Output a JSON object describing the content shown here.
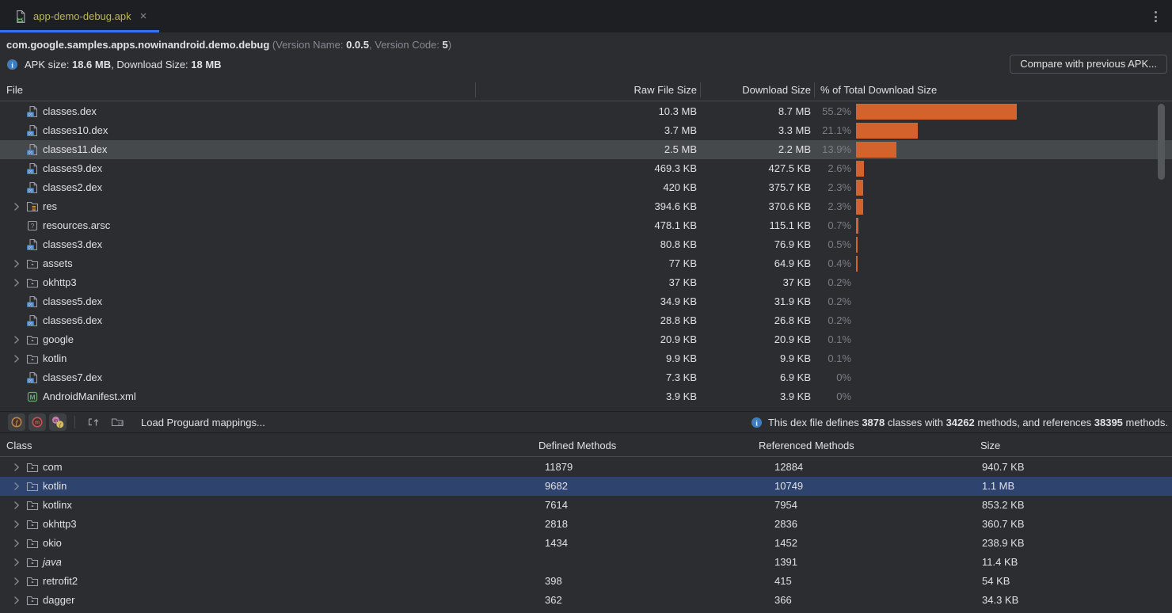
{
  "tab": {
    "title": "app-demo-debug.apk",
    "close": "×"
  },
  "header": {
    "package_name": "com.google.samples.apps.nowinandroid.demo.debug",
    "version_prefix": " (Version Name: ",
    "version_name": "0.0.5",
    "version_mid": ", Version Code: ",
    "version_code": "5",
    "version_suffix": ")",
    "apk_size_label": "APK size: ",
    "apk_size_value": "18.6 MB",
    "download_label": ", Download Size: ",
    "download_value": "18 MB",
    "compare_button": "Compare with previous APK..."
  },
  "colors": {
    "accent_blue": "#3574F0",
    "bar_orange": "#D4622D",
    "selection_blue": "#2E436E",
    "selection_gray": "#46494B"
  },
  "file_table": {
    "columns": [
      "File",
      "Raw File Size",
      "Download Size",
      "% of Total Download Size"
    ],
    "rows": [
      {
        "label": "classes.dex",
        "icon": "dex-file-icon",
        "folder": false,
        "raw": "10.3 MB",
        "download": "8.7 MB",
        "pct": "55.2%",
        "pct_value": 55.2,
        "selected": false
      },
      {
        "label": "classes10.dex",
        "icon": "dex-file-icon",
        "folder": false,
        "raw": "3.7 MB",
        "download": "3.3 MB",
        "pct": "21.1%",
        "pct_value": 21.1,
        "selected": false
      },
      {
        "label": "classes11.dex",
        "icon": "dex-file-icon",
        "folder": false,
        "raw": "2.5 MB",
        "download": "2.2 MB",
        "pct": "13.9%",
        "pct_value": 13.9,
        "selected": true
      },
      {
        "label": "classes9.dex",
        "icon": "dex-file-icon",
        "folder": false,
        "raw": "469.3 KB",
        "download": "427.5 KB",
        "pct": "2.6%",
        "pct_value": 2.6,
        "selected": false
      },
      {
        "label": "classes2.dex",
        "icon": "dex-file-icon",
        "folder": false,
        "raw": "420 KB",
        "download": "375.7 KB",
        "pct": "2.3%",
        "pct_value": 2.3,
        "selected": false
      },
      {
        "label": "res",
        "icon": "res-folder-icon",
        "folder": true,
        "raw": "394.6 KB",
        "download": "370.6 KB",
        "pct": "2.3%",
        "pct_value": 2.3,
        "selected": false
      },
      {
        "label": "resources.arsc",
        "icon": "arsc-file-icon",
        "folder": false,
        "raw": "478.1 KB",
        "download": "115.1 KB",
        "pct": "0.7%",
        "pct_value": 0.7,
        "selected": false
      },
      {
        "label": "classes3.dex",
        "icon": "dex-file-icon",
        "folder": false,
        "raw": "80.8 KB",
        "download": "76.9 KB",
        "pct": "0.5%",
        "pct_value": 0.5,
        "selected": false
      },
      {
        "label": "assets",
        "icon": "folder-icon",
        "folder": true,
        "raw": "77 KB",
        "download": "64.9 KB",
        "pct": "0.4%",
        "pct_value": 0.4,
        "selected": false
      },
      {
        "label": "okhttp3",
        "icon": "folder-icon",
        "folder": true,
        "raw": "37 KB",
        "download": "37 KB",
        "pct": "0.2%",
        "pct_value": 0.2,
        "selected": false
      },
      {
        "label": "classes5.dex",
        "icon": "dex-file-icon",
        "folder": false,
        "raw": "34.9 KB",
        "download": "31.9 KB",
        "pct": "0.2%",
        "pct_value": 0.2,
        "selected": false
      },
      {
        "label": "classes6.dex",
        "icon": "dex-file-icon",
        "folder": false,
        "raw": "28.8 KB",
        "download": "26.8 KB",
        "pct": "0.2%",
        "pct_value": 0.2,
        "selected": false
      },
      {
        "label": "google",
        "icon": "folder-icon",
        "folder": true,
        "raw": "20.9 KB",
        "download": "20.9 KB",
        "pct": "0.1%",
        "pct_value": 0.1,
        "selected": false
      },
      {
        "label": "kotlin",
        "icon": "folder-icon",
        "folder": true,
        "raw": "9.9 KB",
        "download": "9.9 KB",
        "pct": "0.1%",
        "pct_value": 0.1,
        "selected": false
      },
      {
        "label": "classes7.dex",
        "icon": "dex-file-icon",
        "folder": false,
        "raw": "7.3 KB",
        "download": "6.9 KB",
        "pct": "0%",
        "pct_value": 0,
        "selected": false
      },
      {
        "label": "AndroidManifest.xml",
        "icon": "manifest-file-icon",
        "folder": false,
        "raw": "3.9 KB",
        "download": "3.9 KB",
        "pct": "0%",
        "pct_value": 0,
        "selected": false
      }
    ]
  },
  "dex_toolbar": {
    "buttons": [
      {
        "name": "show-fields-button",
        "icon": "field-icon"
      },
      {
        "name": "show-methods-button",
        "icon": "method-icon"
      },
      {
        "name": "show-references-button",
        "icon": "referenced-nodes-icon"
      }
    ],
    "tools": [
      {
        "name": "sort-tree-button",
        "icon": "sort-tree-icon"
      },
      {
        "name": "flatten-packages-button",
        "icon": "flatten-packages-icon"
      }
    ],
    "load_mappings_label": "Load Proguard mappings...",
    "info": {
      "prefix": "This dex file defines ",
      "classes": "3878",
      "mid1": " classes with ",
      "methods": "34262",
      "mid2": " methods, and references ",
      "referenced": "38395",
      "suffix": " methods."
    }
  },
  "class_table": {
    "columns": [
      "Class",
      "Defined Methods",
      "Referenced Methods",
      "Size"
    ],
    "rows": [
      {
        "label": "com",
        "icon": "folder-icon",
        "defined": "11879",
        "referenced": "12884",
        "size": "940.7 KB",
        "selected": false,
        "italic": false
      },
      {
        "label": "kotlin",
        "icon": "folder-icon",
        "defined": "9682",
        "referenced": "10749",
        "size": "1.1 MB",
        "selected": true,
        "italic": false
      },
      {
        "label": "kotlinx",
        "icon": "folder-icon",
        "defined": "7614",
        "referenced": "7954",
        "size": "853.2 KB",
        "selected": false,
        "italic": false
      },
      {
        "label": "okhttp3",
        "icon": "folder-icon",
        "defined": "2818",
        "referenced": "2836",
        "size": "360.7 KB",
        "selected": false,
        "italic": false
      },
      {
        "label": "okio",
        "icon": "folder-icon",
        "defined": "1434",
        "referenced": "1452",
        "size": "238.9 KB",
        "selected": false,
        "italic": false
      },
      {
        "label": "java",
        "icon": "folder-icon",
        "defined": "",
        "referenced": "1391",
        "size": "11.4 KB",
        "selected": false,
        "italic": true
      },
      {
        "label": "retrofit2",
        "icon": "folder-icon",
        "defined": "398",
        "referenced": "415",
        "size": "54 KB",
        "selected": false,
        "italic": false
      },
      {
        "label": "dagger",
        "icon": "folder-icon",
        "defined": "362",
        "referenced": "366",
        "size": "34.3 KB",
        "selected": false,
        "italic": false
      }
    ]
  }
}
